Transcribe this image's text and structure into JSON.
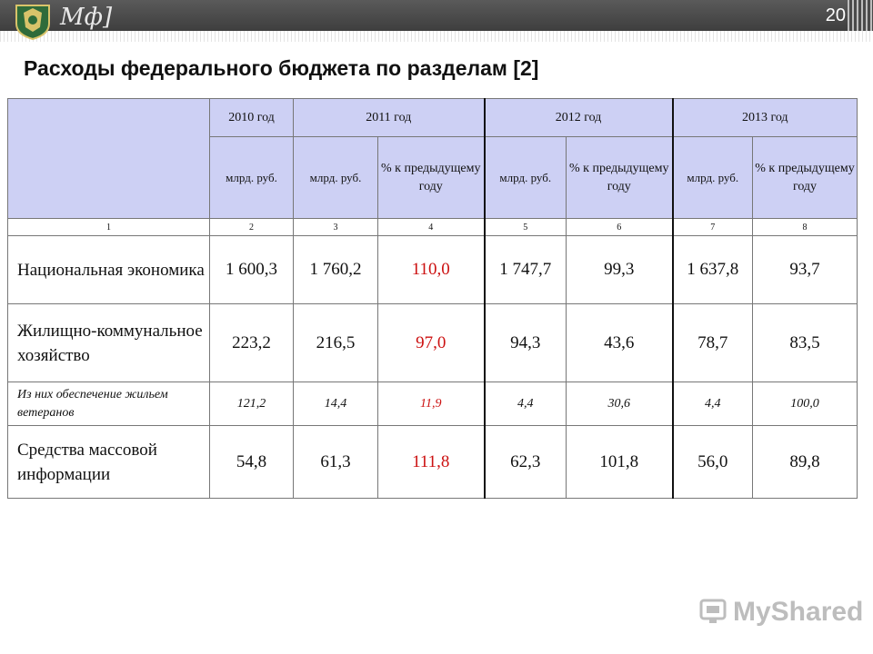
{
  "slide": {
    "logo_text": "Мф]",
    "page_number": "20",
    "title": "Расходы федерального бюджета по разделам [2]"
  },
  "table": {
    "years": [
      "2010 год",
      "2011 год",
      "2012 год",
      "2013 год"
    ],
    "unit_bn": "млрд. руб.",
    "unit_pct": "% к предыдущему году",
    "col_numbers": [
      "1",
      "2",
      "3",
      "4",
      "5",
      "6",
      "7",
      "8"
    ],
    "rows": [
      {
        "label": "Национальная экономика",
        "values": [
          "1 600,3",
          "1 760,2",
          "110,0",
          "1 747,7",
          "99,3",
          "1 637,8",
          "93,7"
        ]
      },
      {
        "label": "Жилищно-коммунальное хозяйство",
        "values": [
          "223,2",
          "216,5",
          "97,0",
          "94,3",
          "43,6",
          "78,7",
          "83,5"
        ]
      },
      {
        "label": "Из них обеспечение жильем ветеранов",
        "values": [
          "121,2",
          "14,4",
          "11,9",
          "4,4",
          "30,6",
          "4,4",
          "100,0"
        ]
      },
      {
        "label": "Средства массовой информации",
        "values": [
          "54,8",
          "61,3",
          "111,8",
          "62,3",
          "101,8",
          "56,0",
          "89,8"
        ]
      }
    ]
  },
  "watermark": {
    "text": "MyShared"
  },
  "colors": {
    "header_bg": "#cdd0f4",
    "highlight_red": "#cc1111",
    "topbar": "#4a4a4a"
  }
}
